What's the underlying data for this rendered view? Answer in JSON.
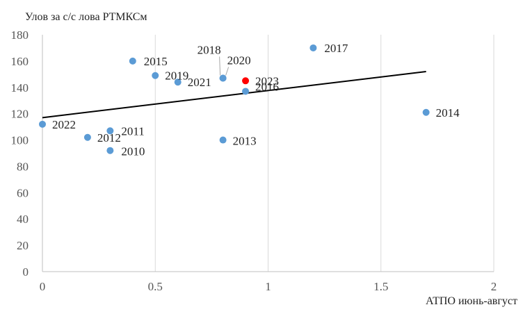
{
  "chart_data": {
    "type": "scatter",
    "ylabel": "Улов за с/с лова РТМКСм",
    "xlabel": "АТПО июнь-август",
    "xlim": [
      0,
      2
    ],
    "ylim": [
      0,
      180
    ],
    "xticks": [
      0,
      0.5,
      1,
      1.5,
      2
    ],
    "xtick_labels": [
      "0",
      "0.5",
      "1",
      "1.5",
      "2"
    ],
    "yticks": [
      0,
      20,
      40,
      60,
      80,
      100,
      120,
      140,
      160,
      180
    ],
    "ytick_labels": [
      "0",
      "20",
      "40",
      "60",
      "80",
      "100",
      "120",
      "140",
      "160",
      "180"
    ],
    "grid": "vertical",
    "colors": {
      "point": "#5b9bd5",
      "highlight": "#ff0000",
      "trend": "#000000",
      "grid": "#d9d9d9"
    },
    "points": [
      {
        "label": "2010",
        "x": 0.3,
        "y": 92,
        "highlight": false
      },
      {
        "label": "2011",
        "x": 0.3,
        "y": 107,
        "highlight": false
      },
      {
        "label": "2012",
        "x": 0.2,
        "y": 102,
        "highlight": false
      },
      {
        "label": "2013",
        "x": 0.8,
        "y": 100,
        "highlight": false
      },
      {
        "label": "2014",
        "x": 1.7,
        "y": 121,
        "highlight": false
      },
      {
        "label": "2015",
        "x": 0.4,
        "y": 160,
        "highlight": false
      },
      {
        "label": "2016",
        "x": 0.9,
        "y": 137,
        "highlight": false
      },
      {
        "label": "2017",
        "x": 1.2,
        "y": 170,
        "highlight": false
      },
      {
        "label": "2018",
        "x": 0.8,
        "y": 147,
        "highlight": false
      },
      {
        "label": "2019",
        "x": 0.5,
        "y": 149,
        "highlight": false
      },
      {
        "label": "2020",
        "x": 0.8,
        "y": 147,
        "highlight": false
      },
      {
        "label": "2021",
        "x": 0.6,
        "y": 144,
        "highlight": false
      },
      {
        "label": "2022",
        "x": 0.0,
        "y": 112,
        "highlight": false
      },
      {
        "label": "2023",
        "x": 0.9,
        "y": 145,
        "highlight": true
      }
    ],
    "trendline": {
      "x": [
        0,
        1.7
      ],
      "y": [
        117,
        152
      ]
    }
  }
}
